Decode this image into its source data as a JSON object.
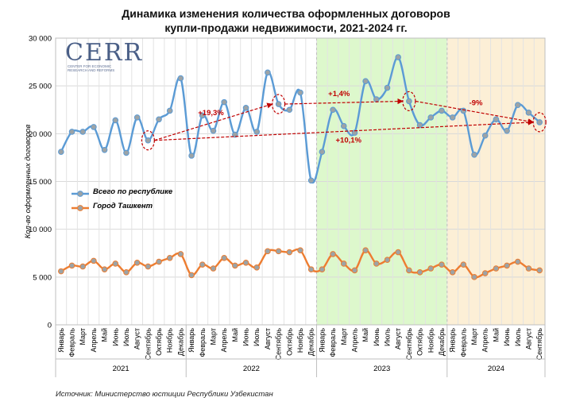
{
  "title_line1": "Динамика изменения количества оформленных договоров",
  "title_line2": "купли-продажи недвижимости, 2021-2024 гг.",
  "source": "Источник: Министерство юстиции Республики Узбекистан",
  "logo": {
    "text": "CERR",
    "sub_lines": [
      "CENTER FOR ECONOMIC",
      "RESEARCH AND REFORMS"
    ]
  },
  "colors": {
    "series1": "#5b9bd5",
    "series2": "#ed7d31",
    "annotation": "#c00000",
    "band2023": "#ddf8cc",
    "band2024": "#fcefd6",
    "marker_fill": "#9ca3a6"
  },
  "chart_data": {
    "type": "line",
    "title": "Динамика изменения количества оформленных договоров купли-продажи недвижимости, 2021-2024 гг.",
    "ylabel": "Кол-во оформленных договоров",
    "ylim": [
      0,
      30000
    ],
    "yticks": [
      "0",
      "5 000",
      "10 000",
      "15 000",
      "20 000",
      "25 000",
      "30 000"
    ],
    "grid": true,
    "legend_position": "left-middle",
    "months": [
      "Январь",
      "Февраль",
      "Март",
      "Апрель",
      "Май",
      "Июнь",
      "Июль",
      "Август",
      "Сентябрь",
      "Октябрь",
      "Ноябрь",
      "Декабрь"
    ],
    "years": [
      "2021",
      "2022",
      "2023",
      "2024"
    ],
    "categories": [
      "Январь 2021",
      "Февраль 2021",
      "Март 2021",
      "Апрель 2021",
      "Май 2021",
      "Июнь 2021",
      "Июль 2021",
      "Август 2021",
      "Сентябрь 2021",
      "Октябрь 2021",
      "Ноябрь 2021",
      "Декабрь 2021",
      "Январь 2022",
      "Февраль 2022",
      "Март 2022",
      "Апрель 2022",
      "Май 2022",
      "Июнь 2022",
      "Июль 2022",
      "Август 2022",
      "Сентябрь 2022",
      "Октябрь 2022",
      "Ноябрь 2022",
      "Декабрь 2022",
      "Январь 2023",
      "Февраль 2023",
      "Март 2023",
      "Апрель 2023",
      "Май 2023",
      "Июнь 2023",
      "Июль 2023",
      "Август 2023",
      "Сентябрь 2023",
      "Октябрь 2023",
      "Ноябрь 2023",
      "Декабрь 2023",
      "Январь 2024",
      "Февраль 2024",
      "Март 2024",
      "Апрель 2024",
      "Май 2024",
      "Июнь 2024",
      "Июль 2024",
      "Август 2024",
      "Сентябрь 2024"
    ],
    "series": [
      {
        "name": "Всего по республике",
        "values": [
          18100,
          20200,
          20200,
          20700,
          18300,
          21400,
          18000,
          21700,
          19300,
          21500,
          22400,
          25800,
          17700,
          21900,
          20300,
          23300,
          19900,
          22700,
          20200,
          26400,
          23100,
          22500,
          24300,
          15100,
          18100,
          22500,
          20800,
          20100,
          25500,
          23600,
          24800,
          28000,
          23400,
          20900,
          21700,
          22400,
          21700,
          22400,
          17800,
          19800,
          21500,
          20300,
          23000,
          22200,
          21200
        ]
      },
      {
        "name": "Город Ташкент",
        "values": [
          5600,
          6200,
          6100,
          6700,
          5800,
          6400,
          5500,
          6500,
          6100,
          6600,
          7000,
          7400,
          5200,
          6300,
          5900,
          7000,
          6200,
          6500,
          6000,
          7700,
          7700,
          7600,
          7800,
          5800,
          5800,
          7400,
          6400,
          5700,
          7800,
          6400,
          6800,
          7600,
          5700,
          5500,
          5900,
          6300,
          5500,
          6300,
          5000,
          5400,
          5900,
          6200,
          6600,
          5900,
          5700
        ]
      }
    ],
    "annotations": [
      {
        "text": "+19,3%",
        "from": "Сентябрь 2021",
        "to": "Сентябрь 2022"
      },
      {
        "text": "+1,4%",
        "from": "Сентябрь 2022",
        "to": "Сентябрь 2023"
      },
      {
        "text": "-9%",
        "from": "Сентябрь 2023",
        "to": "Сентябрь 2024"
      },
      {
        "text": "+10,1%",
        "from": "Сентябрь 2021",
        "to": "Сентябрь 2024"
      }
    ]
  }
}
